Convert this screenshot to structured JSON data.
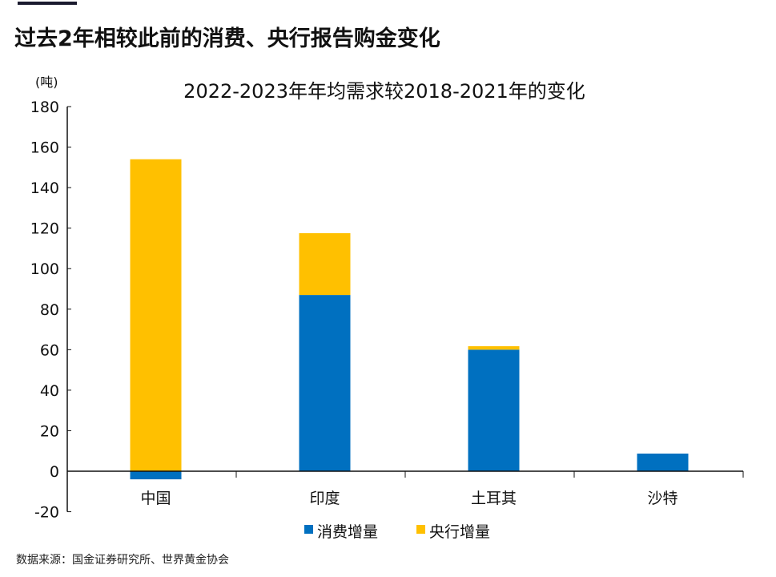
{
  "heading": "过去2年相较此前的消费、央行报告购金变化",
  "footer": "数据来源：国金证券研究所、世界黄金协会",
  "chart_data": {
    "type": "bar",
    "stacked": true,
    "title": "2022-2023年年均需求较2018-2021年的变化",
    "ylabel": "(吨)",
    "ylim": [
      -20,
      180
    ],
    "yticks": [
      180,
      160,
      140,
      120,
      100,
      80,
      60,
      40,
      20,
      0,
      -20
    ],
    "categories": [
      "中国",
      "印度",
      "土耳其",
      "沙特"
    ],
    "series": [
      {
        "name": "消费增量",
        "color": "#0070c0",
        "values": [
          -4,
          87,
          60,
          8.7
        ]
      },
      {
        "name": "央行增量",
        "color": "#ffc000",
        "values": [
          154,
          30.5,
          1.7,
          0
        ]
      }
    ],
    "legend": "bottom"
  }
}
